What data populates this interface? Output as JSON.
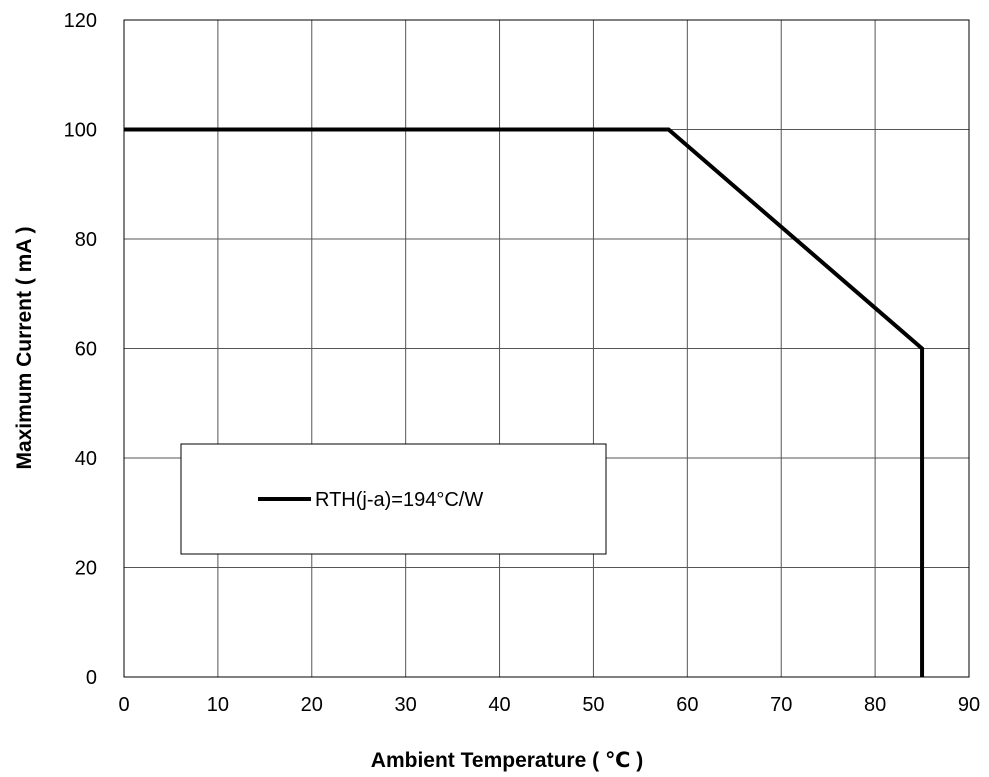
{
  "chart_data": {
    "type": "line",
    "title": "",
    "xlabel": "Ambient Temperature ( ℃ )",
    "ylabel": "Maximum Current ( mA )",
    "xlim": [
      0,
      90
    ],
    "ylim": [
      0,
      120
    ],
    "xticks": [
      0,
      10,
      20,
      30,
      40,
      50,
      60,
      70,
      80,
      90
    ],
    "yticks": [
      0,
      20,
      40,
      60,
      80,
      100,
      120
    ],
    "grid": true,
    "legend": {
      "placement": "lower-left"
    },
    "series": [
      {
        "name": "RTH(j-a)=194°C/W",
        "color": "#000000",
        "points": [
          {
            "x": 0,
            "y": 100
          },
          {
            "x": 58,
            "y": 100
          },
          {
            "x": 85,
            "y": 60
          },
          {
            "x": 85,
            "y": 0
          }
        ]
      }
    ]
  }
}
